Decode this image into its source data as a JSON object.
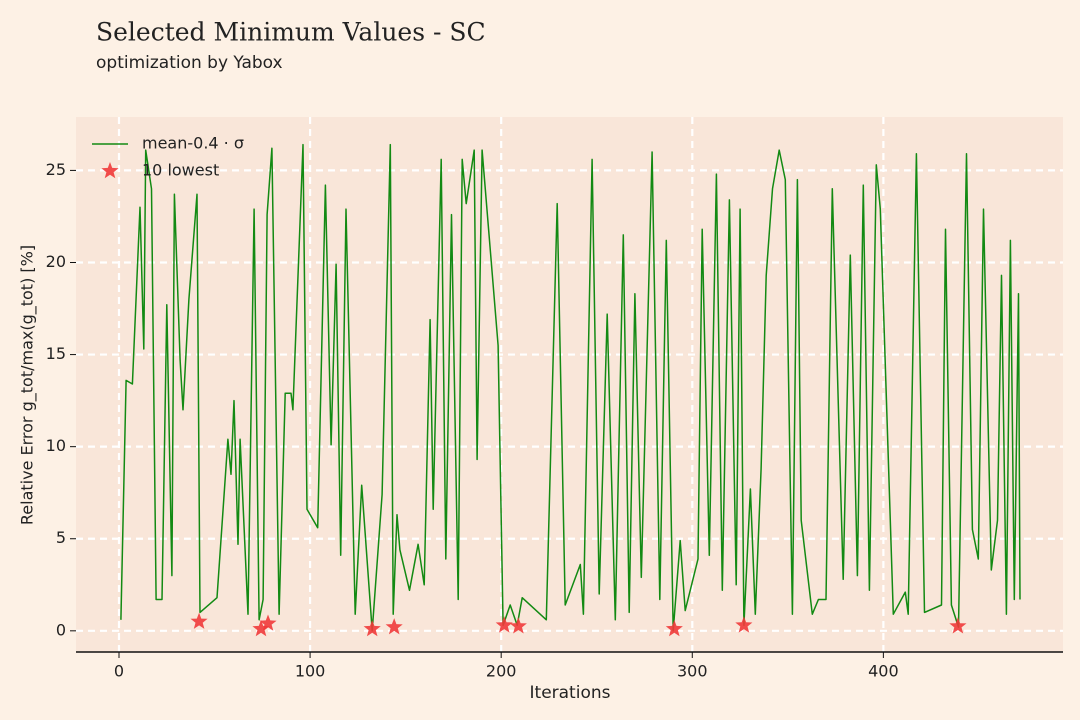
{
  "chart_data": {
    "type": "line",
    "title": "Selected Minimum Values - SC",
    "subtitle": "optimization by Yabox",
    "xlabel": "Iterations",
    "ylabel": "Relative Error g_tot/max(g_tot) [%]",
    "xlim": [
      -22.5,
      494
    ],
    "ylim": [
      -1.15,
      27.9
    ],
    "xticks": [
      0,
      100,
      200,
      300,
      400
    ],
    "yticks": [
      0,
      5,
      10,
      15,
      20,
      25
    ],
    "grid": true,
    "legend": "upper left",
    "series": [
      {
        "name": "mean-0.4 · σ",
        "color": "#138a13",
        "type": "line",
        "x": [
          1,
          3.7,
          7,
          11,
          13,
          14,
          17,
          19.4,
          22.5,
          25,
          27.7,
          29,
          32,
          33.5,
          36.6,
          40.8,
          42.4,
          51.3,
          57,
          58.6,
          60.2,
          62.3,
          63.4,
          67.5,
          70.7,
          73.3,
          75.4,
          77.5,
          80,
          83.8,
          87,
          90,
          91,
          96.3,
          98.4,
          104,
          108,
          111,
          113.6,
          116,
          118.8,
          123.6,
          127,
          132.5,
          137.7,
          142,
          143.5,
          145.5,
          147,
          152,
          156.5,
          159.7,
          162.8,
          164.4,
          168.6,
          171,
          174,
          177.5,
          179.6,
          181.7,
          185.9,
          187.4,
          190,
          198.4,
          201,
          204.7,
          208.4,
          211,
          223.6,
          229.3,
          233.5,
          241.4,
          243,
          247.6,
          251.3,
          255.5,
          259.7,
          263.9,
          267,
          270,
          273.3,
          279,
          283,
          286.4,
          290,
          293.7,
          296.3,
          303,
          305.2,
          308.9,
          312.6,
          315.7,
          319.4,
          323,
          325,
          327,
          330.4,
          333,
          336,
          338.7,
          342,
          345.5,
          348.7,
          352.4,
          355,
          357,
          362.8,
          366,
          370,
          373.3,
          379,
          382.7,
          386.4,
          389.5,
          392.7,
          396.3,
          398.4,
          405.2,
          411.5,
          413,
          417.3,
          421.5,
          430.4,
          432.5,
          435.6,
          439.3,
          443.5,
          446.6,
          449.7,
          452.4,
          456.5,
          459.7,
          461.8,
          464.4,
          466.5,
          468.5,
          470.7,
          471.5
        ],
        "values": [
          0.6,
          13.6,
          13.4,
          23,
          15.3,
          26.1,
          24,
          1.7,
          1.7,
          17.7,
          3,
          23.7,
          14.7,
          12,
          18,
          23.7,
          1.0,
          1.8,
          10.4,
          8.5,
          12.5,
          4.7,
          10.4,
          0.9,
          22.9,
          0.6,
          1.7,
          22.6,
          26.2,
          0.9,
          12.9,
          12.9,
          12,
          26.4,
          6.6,
          5.6,
          24.2,
          10.1,
          19.9,
          4.1,
          22.9,
          0.9,
          7.9,
          0,
          7.4,
          26.4,
          0.9,
          6.3,
          4.4,
          2.2,
          4.7,
          2.5,
          16.9,
          6.6,
          25.6,
          3.9,
          22.6,
          1.7,
          25.6,
          23.2,
          26.1,
          9.3,
          26.1,
          15.5,
          0.3,
          1.4,
          0.3,
          1.8,
          0.6,
          23.2,
          1.4,
          3.6,
          0.9,
          25.6,
          2.0,
          17.2,
          0.6,
          21.5,
          1.0,
          18.3,
          2.9,
          26,
          1.7,
          21.2,
          0,
          4.9,
          1.1,
          3.9,
          21.8,
          4.1,
          24.8,
          2.2,
          23.4,
          2.5,
          22.9,
          0.3,
          7.7,
          0.9,
          8.8,
          19.3,
          24,
          26.1,
          24.5,
          0.9,
          24.5,
          6,
          0.9,
          1.7,
          1.7,
          24,
          2.8,
          20.4,
          3.0,
          24.2,
          2.2,
          25.3,
          22.9,
          0.9,
          2.1,
          0.9,
          25.9,
          1.0,
          1.4,
          21.8,
          1.4,
          0.2,
          25.9,
          5.5,
          3.9,
          22.9,
          3.3,
          6,
          19.3,
          0.9,
          21.2,
          1.7,
          18.3,
          1.7
        ]
      },
      {
        "name": "10 lowest",
        "color": "#f03a3a",
        "type": "scatter",
        "x": [
          41.9,
          74.3,
          78,
          132.5,
          144,
          201.6,
          209,
          290.6,
          327,
          439
        ],
        "values": [
          0.5,
          0.1,
          0.4,
          0.1,
          0.2,
          0.3,
          0.25,
          0.1,
          0.3,
          0.25
        ]
      }
    ]
  }
}
